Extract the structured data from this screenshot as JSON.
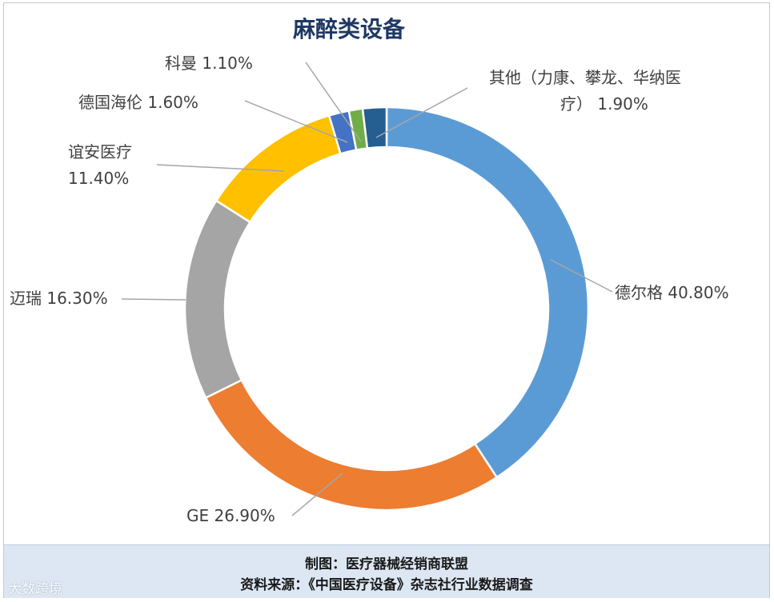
{
  "chart_data": {
    "type": "pie",
    "title": "麻醉类设备",
    "categories": [
      "德尔格",
      "GE",
      "迈瑞",
      "谊安医疗",
      "德国海伦",
      "科曼",
      "其他（力康、攀龙、华纳医疗）"
    ],
    "values": [
      40.8,
      26.9,
      16.3,
      11.4,
      1.6,
      1.1,
      1.9
    ],
    "labels": [
      {
        "lines": [
          "德尔格 40.80%"
        ]
      },
      {
        "lines": [
          "GE 26.90%"
        ]
      },
      {
        "lines": [
          "迈瑞 16.30%"
        ]
      },
      {
        "lines": [
          "谊安医疗",
          "11.40%"
        ]
      },
      {
        "lines": [
          "德国海伦 1.60%"
        ]
      },
      {
        "lines": [
          "科曼 1.10%"
        ]
      },
      {
        "lines": [
          "其他（力康、攀龙、华纳医",
          "疗） 1.90%"
        ]
      }
    ],
    "colors": [
      "#5b9bd5",
      "#ed7d31",
      "#a5a5a5",
      "#ffc000",
      "#4472c4",
      "#70ad47",
      "#255e91"
    ],
    "donut": true,
    "legend": "none"
  },
  "footer": {
    "credit": "制图：医疗器械经销商联盟",
    "source": "资料来源：《中国医疗设备》杂志社行业数据调查"
  },
  "watermark": "大数跨境"
}
